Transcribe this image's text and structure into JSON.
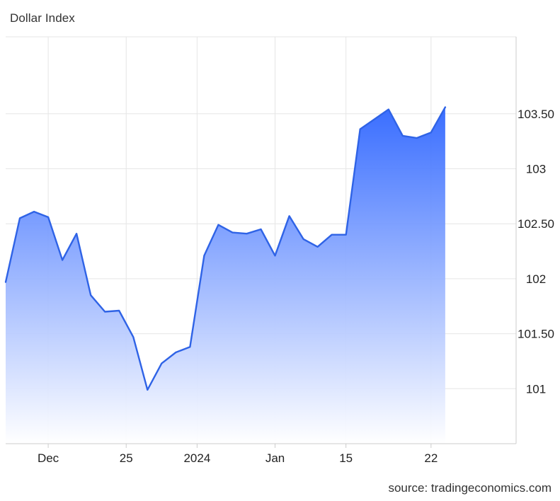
{
  "header": {
    "title": "Dollar Index"
  },
  "footer": {
    "source": "source: tradingeconomics.com"
  },
  "colors": {
    "line": "#2f63e6",
    "fill_top": "#2f66ff",
    "fill_bottom": "#ffffff",
    "grid": "#e6e6e6"
  },
  "chart_data": {
    "type": "area",
    "title": "Dollar Index",
    "xlabel": "",
    "ylabel": "",
    "ylim": [
      100.5,
      104.2
    ],
    "grid": true,
    "y_ticks": [
      {
        "value": 101,
        "label": "101"
      },
      {
        "value": 101.5,
        "label": "101.50"
      },
      {
        "value": 102,
        "label": "102"
      },
      {
        "value": 102.5,
        "label": "102.50"
      },
      {
        "value": 103,
        "label": "103"
      },
      {
        "value": 103.5,
        "label": "103.50"
      }
    ],
    "x_ticks": [
      {
        "index": 3,
        "label": "Dec"
      },
      {
        "index": 8.5,
        "label": "25"
      },
      {
        "index": 13.5,
        "label": "2024"
      },
      {
        "index": 19,
        "label": "Jan"
      },
      {
        "index": 24,
        "label": "15"
      },
      {
        "index": 30,
        "label": "22"
      }
    ],
    "x_domain": [
      0,
      36
    ],
    "series": [
      {
        "values": [
          101.97,
          102.55,
          102.61,
          102.56,
          102.17,
          102.41,
          101.85,
          101.7,
          101.71,
          101.47,
          100.99,
          101.23,
          101.33,
          101.38,
          102.21,
          102.49,
          102.42,
          102.41,
          102.45,
          102.21,
          102.57,
          102.36,
          102.29,
          102.4,
          102.4,
          103.36,
          103.45,
          103.54,
          103.3,
          103.28,
          103.33,
          103.56
        ]
      }
    ]
  }
}
